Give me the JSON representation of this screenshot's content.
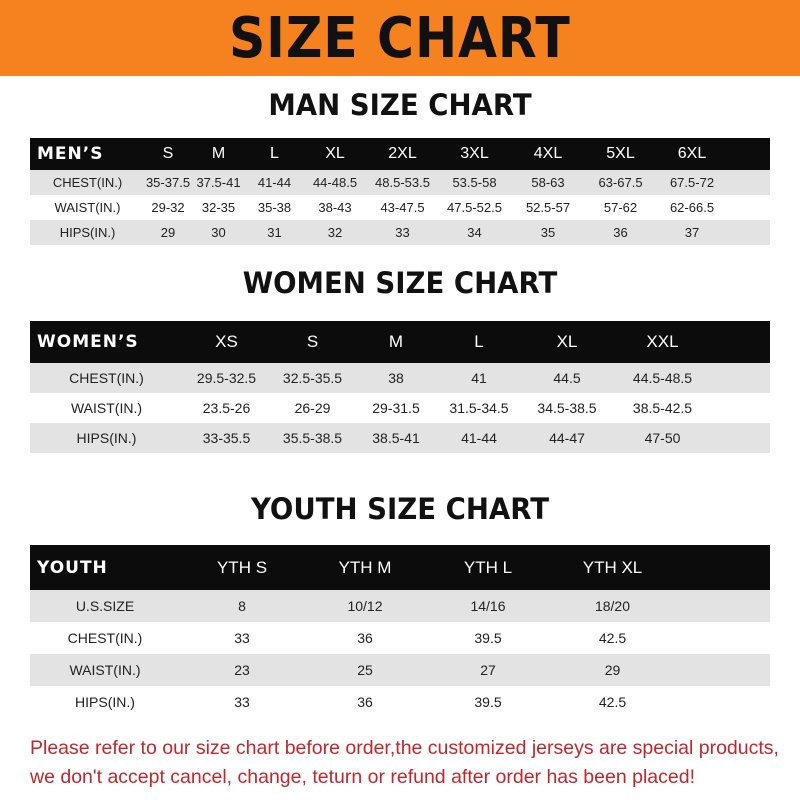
{
  "title": "SIZE CHART",
  "colors": {
    "banner": "#f5821f",
    "header_row": "#0c0c0c",
    "stripe": "#e3e3e3",
    "notice": "#c1272d"
  },
  "men": {
    "title": "MAN SIZE CHART",
    "header_label": "MEN’S",
    "sizes": [
      "S",
      "M",
      "L",
      "XL",
      "2XL",
      "3XL",
      "4XL",
      "5XL",
      "6XL"
    ],
    "rows": [
      {
        "label": "CHEST(IN.)",
        "values": [
          "35-37.5",
          "37.5-41",
          "41-44",
          "44-48.5",
          "48.5-53.5",
          "53.5-58",
          "58-63",
          "63-67.5",
          "67.5-72"
        ]
      },
      {
        "label": "WAIST(IN.)",
        "values": [
          "29-32",
          "32-35",
          "35-38",
          "38-43",
          "43-47.5",
          "47.5-52.5",
          "52.5-57",
          "57-62",
          "62-66.5"
        ]
      },
      {
        "label": "HIPS(IN.)",
        "values": [
          "29",
          "30",
          "31",
          "32",
          "33",
          "34",
          "35",
          "36",
          "37"
        ]
      }
    ]
  },
  "women": {
    "title": "WOMEN SIZE CHART",
    "header_label": "WOMEN’S",
    "sizes": [
      "XS",
      "S",
      "M",
      "L",
      "XL",
      "XXL"
    ],
    "rows": [
      {
        "label": "CHEST(IN.)",
        "values": [
          "29.5-32.5",
          "32.5-35.5",
          "38",
          "41",
          "44.5",
          "44.5-48.5"
        ]
      },
      {
        "label": "WAIST(IN.)",
        "values": [
          "23.5-26",
          "26-29",
          "29-31.5",
          "31.5-34.5",
          "34.5-38.5",
          "38.5-42.5"
        ]
      },
      {
        "label": "HIPS(IN.)",
        "values": [
          "33-35.5",
          "35.5-38.5",
          "38.5-41",
          "41-44",
          "44-47",
          "47-50"
        ]
      }
    ]
  },
  "youth": {
    "title": "YOUTH SIZE CHART",
    "header_label": "YOUTH",
    "sizes": [
      "YTH S",
      "YTH M",
      "YTH L",
      "YTH XL"
    ],
    "rows": [
      {
        "label": "U.S.SIZE",
        "values": [
          "8",
          "10/12",
          "14/16",
          "18/20"
        ]
      },
      {
        "label": "CHEST(IN.)",
        "values": [
          "33",
          "36",
          "39.5",
          "42.5"
        ]
      },
      {
        "label": "WAIST(IN.)",
        "values": [
          "23",
          "25",
          "27",
          "29"
        ]
      },
      {
        "label": "HIPS(IN.)",
        "values": [
          "33",
          "36",
          "39.5",
          "42.5"
        ]
      }
    ]
  },
  "notice": {
    "line1": "Please refer to our size chart before order,the customized jerseys are special products,",
    "line2": "we don't accept cancel, change, teturn or refund after order has been placed!"
  }
}
